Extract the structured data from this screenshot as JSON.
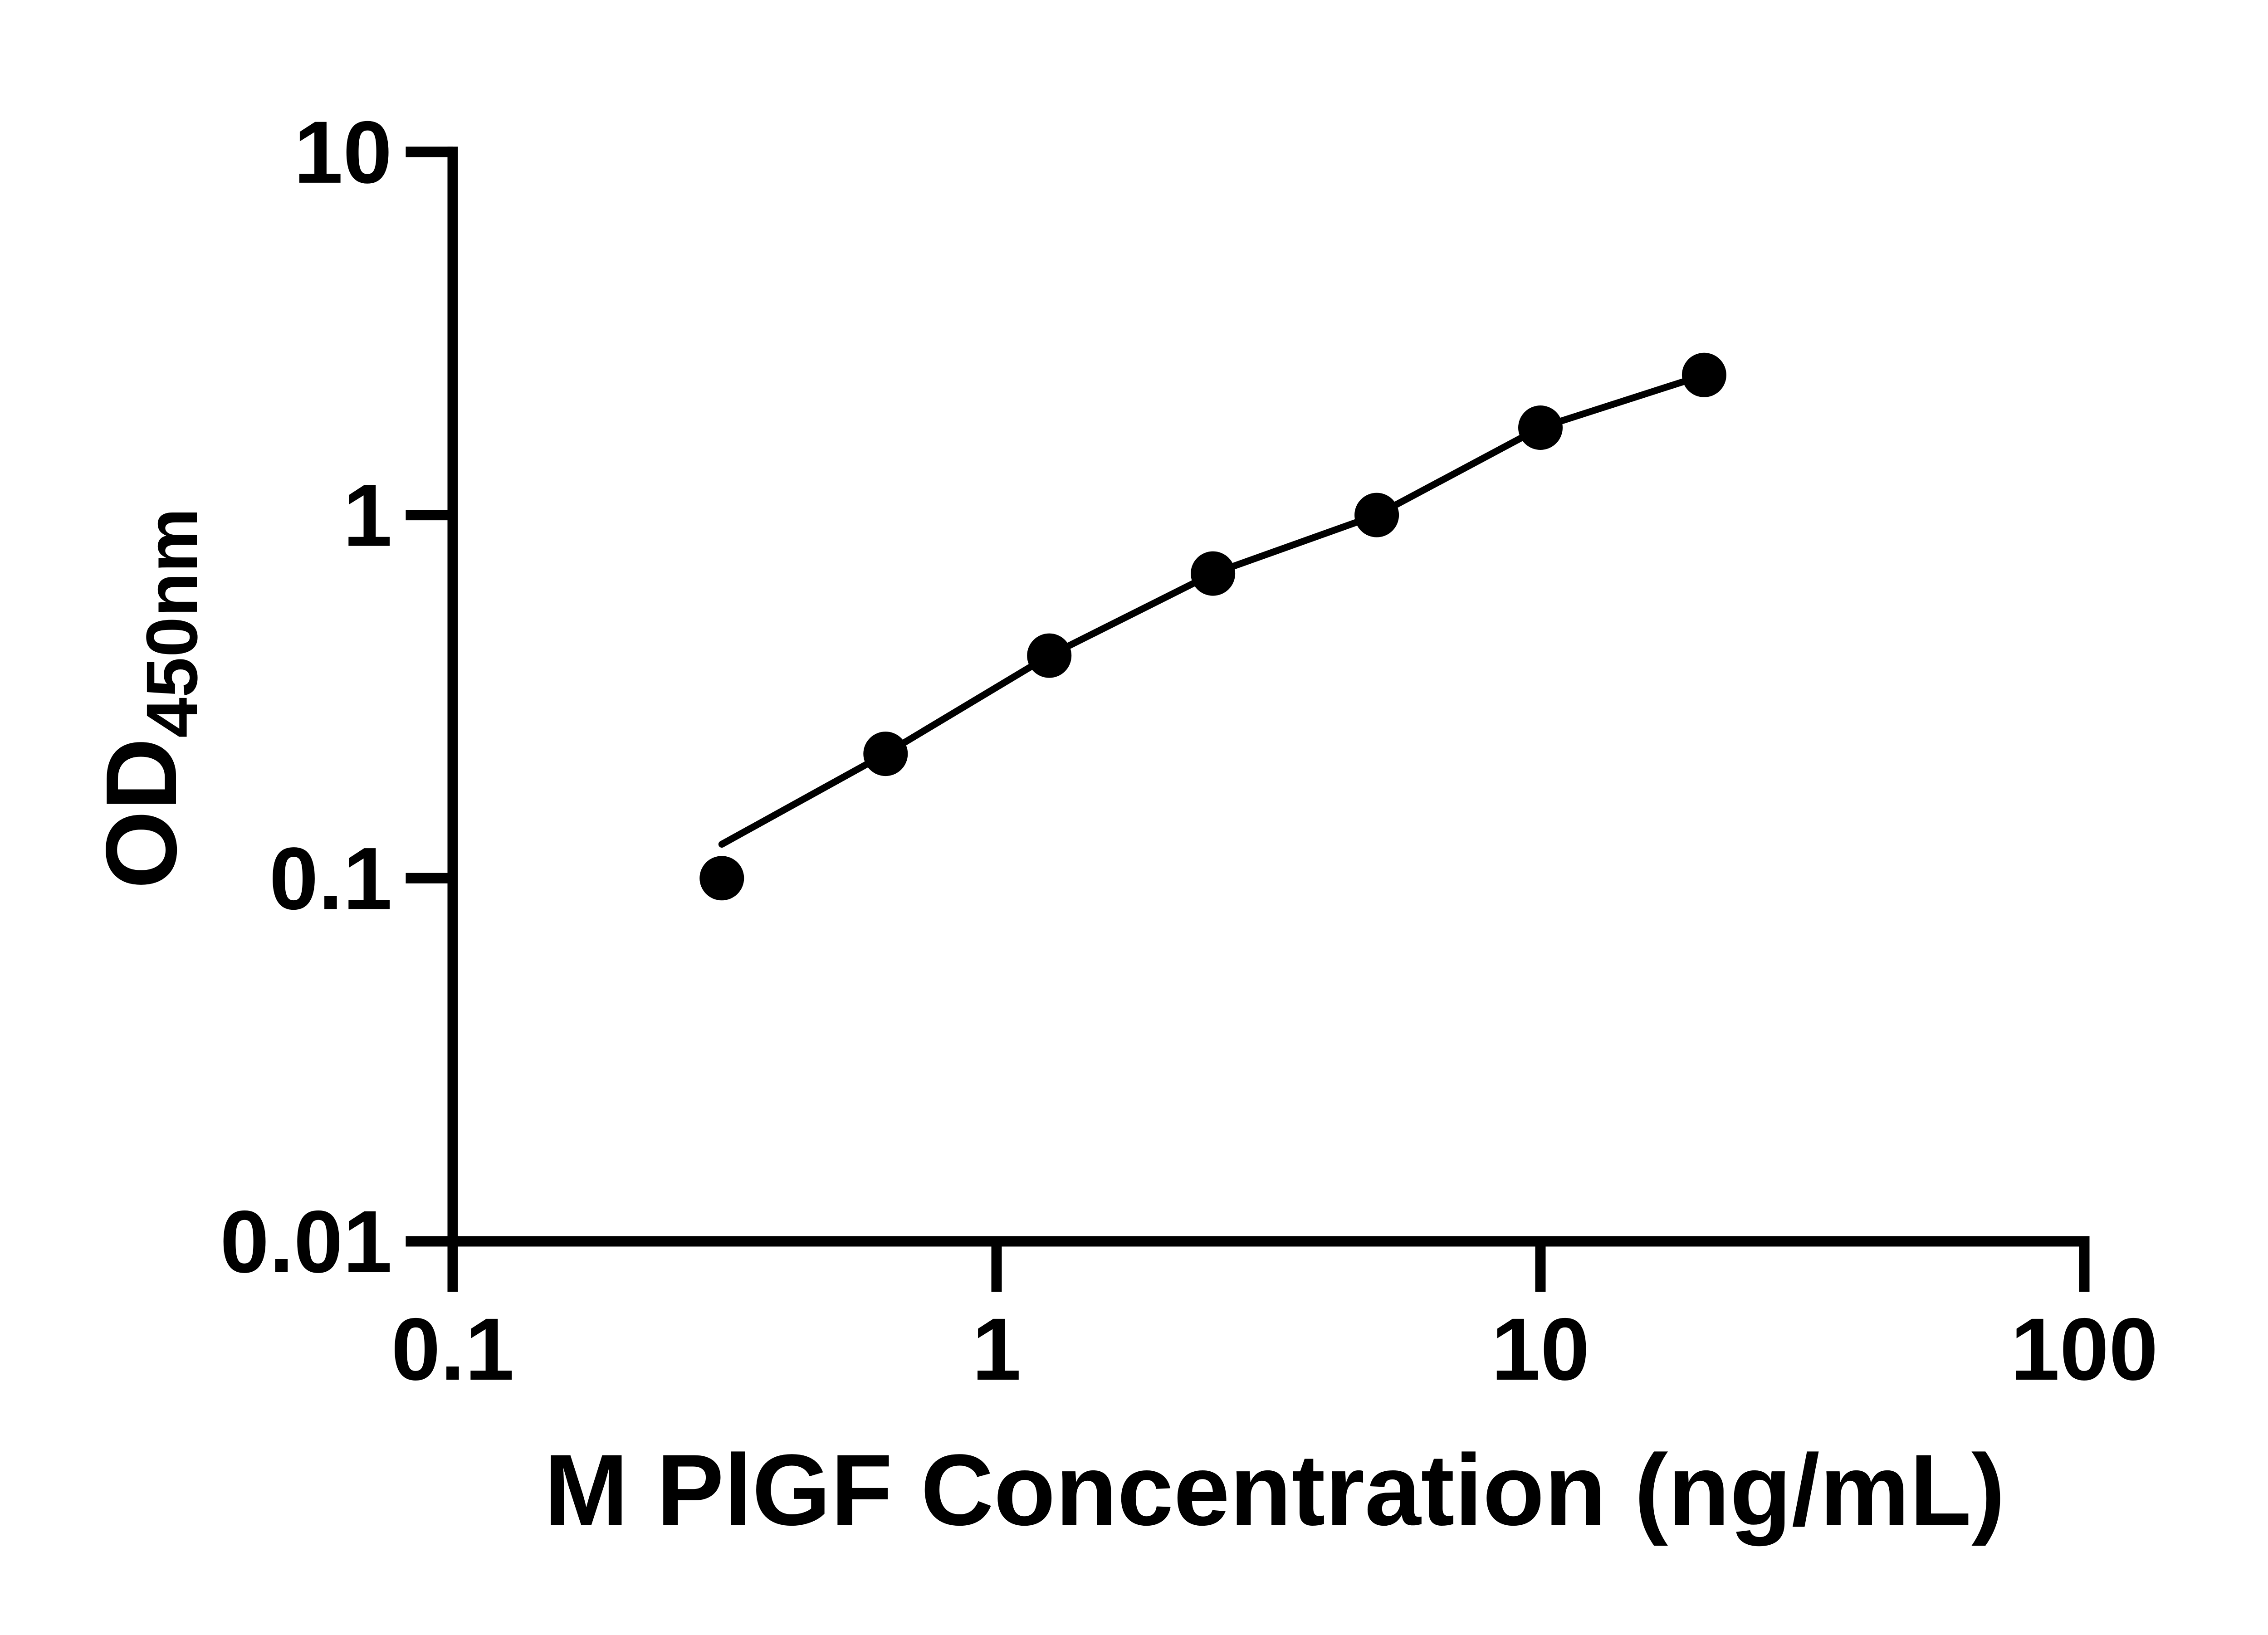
{
  "colors": {
    "background": "#ffffff",
    "ink": "#000000"
  },
  "chart_data": {
    "type": "scatter",
    "subtype": "standard-curve-log-log",
    "title": "",
    "xlabel": "M PlGF Concentration (ng/mL)",
    "ylabel_main": "OD",
    "ylabel_sub": "450nm",
    "xscale": "log",
    "yscale": "log",
    "xlim": [
      0.1,
      100
    ],
    "ylim": [
      0.01,
      10
    ],
    "grid": false,
    "legend": null,
    "x_ticks": [
      {
        "value": 0.1,
        "label": "0.1"
      },
      {
        "value": 1,
        "label": "1"
      },
      {
        "value": 10,
        "label": "10"
      },
      {
        "value": 100,
        "label": "100"
      }
    ],
    "y_ticks": [
      {
        "value": 10,
        "label": "10"
      },
      {
        "value": 1,
        "label": "1"
      },
      {
        "value": 0.1,
        "label": "0.1"
      },
      {
        "value": 0.01,
        "label": "0.01"
      }
    ],
    "series": [
      {
        "name": "standard-points",
        "x": [
          0.3125,
          0.625,
          1.25,
          2.5,
          5,
          10,
          20
        ],
        "y": [
          0.1,
          0.22,
          0.41,
          0.69,
          1.0,
          1.74,
          2.43
        ]
      }
    ],
    "fit_line": {
      "name": "fitted-curve",
      "x": [
        0.3125,
        0.625,
        1.25,
        2.5,
        5,
        10,
        20
      ],
      "y": [
        0.124,
        0.22,
        0.41,
        0.69,
        1.0,
        1.74,
        2.43
      ]
    },
    "marker_color": "#000000",
    "line_color": "#000000"
  }
}
